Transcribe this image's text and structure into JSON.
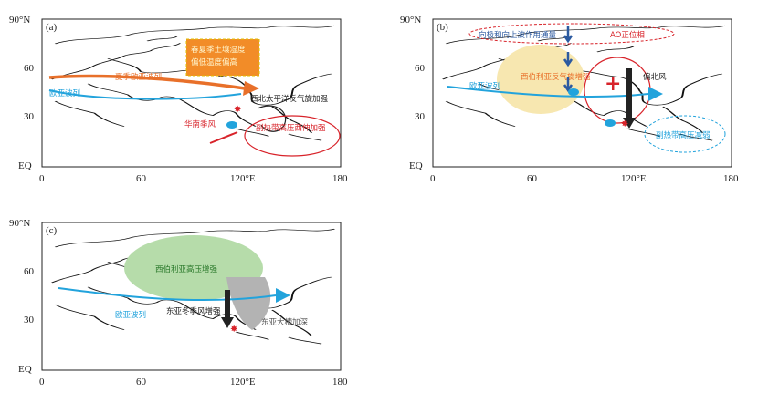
{
  "panels": [
    {
      "tag": "(a)",
      "y_ticks": [
        "90°N",
        "60",
        "30",
        "EQ"
      ],
      "x_ticks": [
        "0",
        "60",
        "120°E",
        "180"
      ],
      "labels": {
        "box_line1": "春夏季土壤湿度",
        "box_line2": "偏低温度偏高",
        "summer_wave": "夏季欧亚波列",
        "wave_left": "欧亚波列",
        "nw_pacific": "西北太平洋反气旋加强",
        "south_china_monsoon": "华南季风",
        "subtropical_high": "副热带高压西伸加强"
      }
    },
    {
      "tag": "(b)",
      "y_ticks": [
        "90°N",
        "60",
        "30",
        "EQ"
      ],
      "x_ticks": [
        "0",
        "60",
        "120°E",
        "180"
      ],
      "labels": {
        "poleward_flux": "向极和向上波作用通量",
        "ao_positive": "AO正位相",
        "siberian_high": "西伯利亚反气旋增强",
        "plus_sign": "+",
        "eurasian_wave": "欧亚波列",
        "northerly": "偏北风",
        "subtropical_weak": "副热带高压减弱"
      }
    },
    {
      "tag": "(c)",
      "y_ticks": [
        "90°N",
        "60",
        "30",
        "EQ"
      ],
      "x_ticks": [
        "0",
        "60",
        "120°E",
        "180"
      ],
      "labels": {
        "siberian_high": "西伯利亚高压增强",
        "eurasian_wave": "欧亚波列",
        "winter_monsoon": "东亚冬季风增强",
        "trough": "东亚大槽加深"
      }
    }
  ],
  "colors": {
    "wave_blue": "#22a3dc",
    "orange": "#e8702a",
    "red": "#d8232a",
    "dark_blue": "#2c5aa0",
    "yellow_fill": "#f7e7b0",
    "green_fill": "#b6dcaa",
    "gray_fill": "#b3b3b3",
    "box_orange": "#f28c28"
  }
}
